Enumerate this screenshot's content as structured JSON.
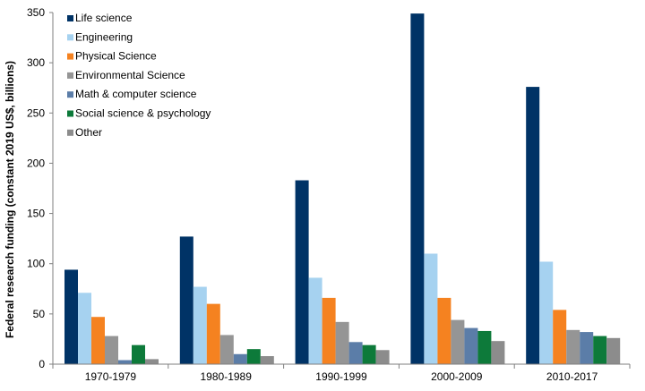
{
  "chart_data": {
    "type": "bar",
    "title": "",
    "xlabel": "",
    "ylabel": "Federal research funding (constant 2019 US$, billions)",
    "ylim": [
      0,
      350
    ],
    "yticks": [
      0,
      50,
      100,
      150,
      200,
      250,
      300,
      350
    ],
    "grid": false,
    "legend_position": "top-left",
    "categories": [
      "1970-1979",
      "1980-1989",
      "1990-1999",
      "2000-2009",
      "2010-2017"
    ],
    "series": [
      {
        "name": "Life science",
        "color": "#003366",
        "values": [
          94,
          127,
          183,
          349,
          276
        ]
      },
      {
        "name": "Engineering",
        "color": "#A6D2F0",
        "values": [
          71,
          77,
          86,
          110,
          102
        ]
      },
      {
        "name": "Physical Science",
        "color": "#F58220",
        "values": [
          47,
          60,
          66,
          66,
          54
        ]
      },
      {
        "name": "Environmental Science",
        "color": "#959595",
        "values": [
          28,
          29,
          42,
          44,
          34
        ]
      },
      {
        "name": "Math & computer science",
        "color": "#5B7DA8",
        "values": [
          4,
          10,
          22,
          36,
          32
        ]
      },
      {
        "name": "Social science & psychology",
        "color": "#0D7A3A",
        "values": [
          19,
          15,
          19,
          33,
          28
        ]
      },
      {
        "name": "Other",
        "color": "#8C8C8C",
        "values": [
          5,
          8,
          14,
          23,
          26
        ]
      }
    ]
  }
}
